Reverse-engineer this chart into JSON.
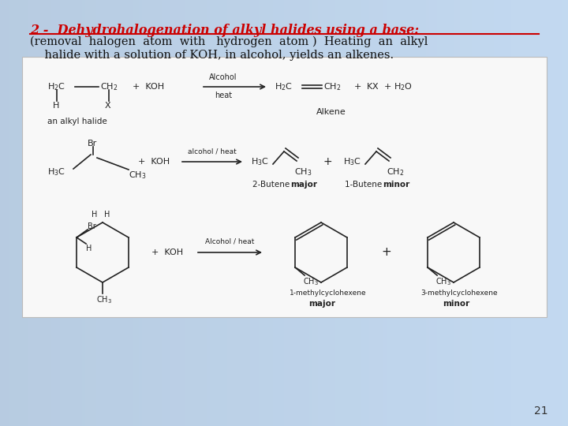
{
  "bg_color": "#cde0ef",
  "title_text": "2 -  Dehydrohalogenation of alkyl halides using a base:",
  "title_color": "#cc0000",
  "title_fontsize": 11.5,
  "body_line1": "(removal  halogen  atom  with   hydrogen  atom )  Heating  an  alkyl",
  "body_line2": "    halide with a solution of KOH, in alcohol, yields an alkenes.",
  "body_fontsize": 10.5,
  "body_color": "#111111",
  "box_facecolor": "#f8f8f8",
  "box_edgecolor": "#bbbbbb",
  "page_number": "21",
  "chem_fontsize": 8,
  "chem_color": "#222222"
}
